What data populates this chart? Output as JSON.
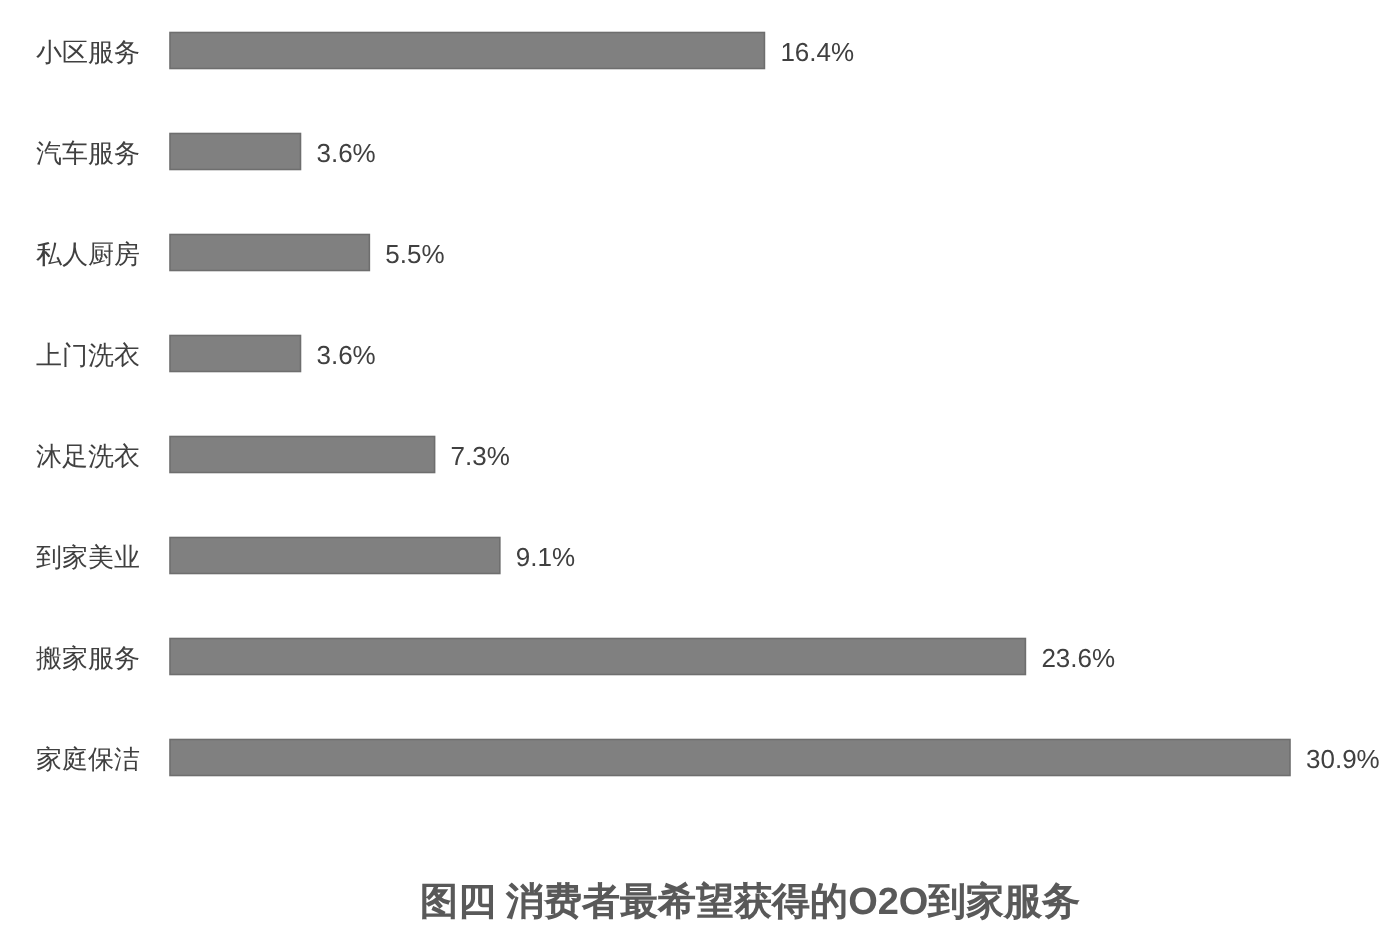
{
  "chart_data": {
    "type": "bar",
    "orientation": "horizontal",
    "title": "图四 消费者最希望获得的O2O到家服务",
    "categories": [
      "小区服务",
      "汽车服务",
      "私人厨房",
      "上门洗衣",
      "沐足洗衣",
      "到家美业",
      "搬家服务",
      "家庭保洁"
    ],
    "values": [
      16.4,
      3.6,
      5.5,
      3.6,
      7.3,
      9.1,
      23.6,
      30.9
    ],
    "value_labels": [
      "16.4%",
      "3.6%",
      "5.5%",
      "3.6%",
      "7.3%",
      "9.1%",
      "23.6%",
      "30.9%"
    ],
    "color": "#808080"
  }
}
